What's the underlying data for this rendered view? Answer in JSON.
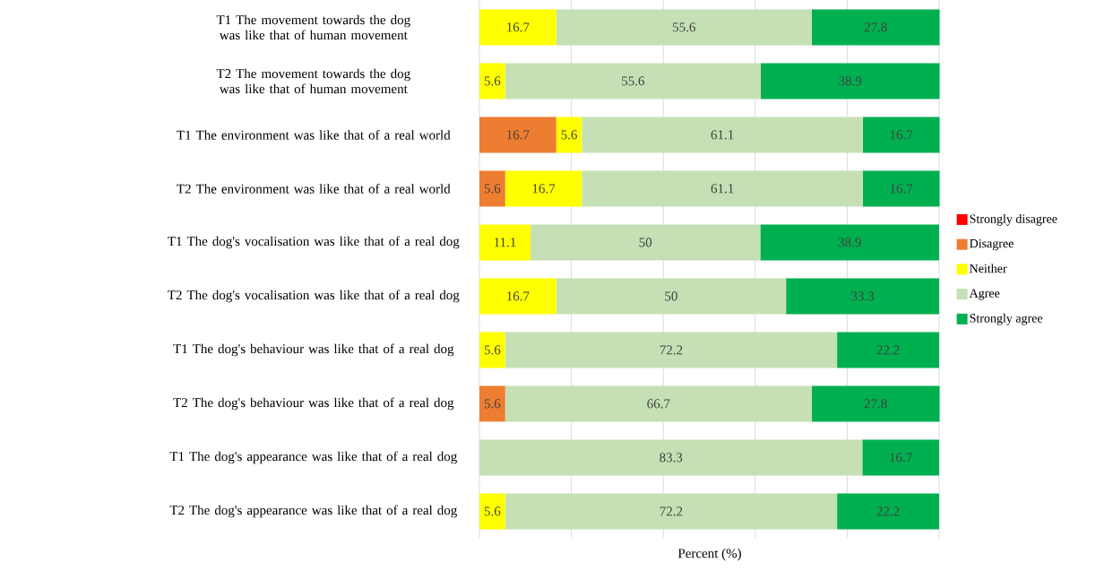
{
  "chart_data": {
    "type": "bar",
    "orientation": "horizontal",
    "stacked": true,
    "data_labels": true,
    "grid": "x",
    "legend": "right",
    "tick_labels": "y",
    "xlabel": "Percent (%)",
    "categories": [
      "T1 The movement towards the dog was like that of human movement",
      "T2 The movement towards the dog was like that of human movement",
      "T1 The environment was like that of a real world",
      "T2 The environment was like that of a real world",
      "T1 The dog's vocalisation was like that of a real dog",
      "T2 The dog's vocalisation was like that of a real dog",
      "T1 The dog's behaviour was like that of a real dog",
      "T2 The dog's behaviour was like that of a real dog",
      "T1 The dog's appearance was like that of a real dog",
      "T2 The dog's appearance was like that of a real dog"
    ],
    "xlim": [
      0,
      100.2
    ],
    "xticks": [
      {
        "value": 0,
        "label": null
      },
      {
        "value": 20,
        "label": null
      },
      {
        "value": 40,
        "label": null
      },
      {
        "value": 60,
        "label": null
      },
      {
        "value": 80,
        "label": null
      },
      {
        "value": 100,
        "label": null
      }
    ],
    "series": [
      {
        "name": "Strongly disagree",
        "color": "#ff0000",
        "values": [
          null,
          null,
          null,
          null,
          null,
          null,
          null,
          null,
          null,
          null
        ]
      },
      {
        "name": "Disagree",
        "color": "#ed7d31",
        "values": [
          null,
          null,
          16.7,
          5.6,
          null,
          null,
          null,
          5.6,
          null,
          null
        ]
      },
      {
        "name": "Neither",
        "color": "#ffff00",
        "values": [
          16.7,
          5.6,
          5.6,
          16.7,
          11.1,
          16.7,
          5.6,
          null,
          null,
          5.6
        ]
      },
      {
        "name": "Agree",
        "color": "#c5e0b4",
        "values": [
          55.6,
          55.6,
          61.1,
          61.1,
          50,
          50,
          72.2,
          66.7,
          83.3,
          72.2
        ]
      },
      {
        "name": "Strongly agree",
        "color": "#00b050",
        "values": [
          27.8,
          38.9,
          16.7,
          16.7,
          38.9,
          33.3,
          22.2,
          27.8,
          16.7,
          22.2
        ]
      }
    ]
  }
}
